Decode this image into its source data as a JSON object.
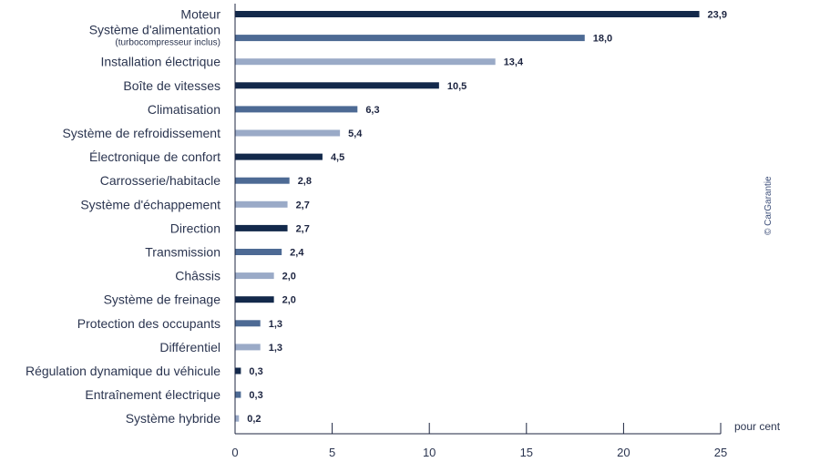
{
  "chart_data": {
    "type": "bar",
    "orientation": "horizontal",
    "categories": [
      "Moteur",
      "Système d'alimentation",
      "Installation électrique",
      "Boîte de vitesses",
      "Climatisation",
      "Système de refroidissement",
      "Électronique de confort",
      "Carrosserie/habitacle",
      "Système d'échappement",
      "Direction",
      "Transmission",
      "Châssis",
      "Système de freinage",
      "Protection des occupants",
      "Différentiel",
      "Régulation dynamique du véhicule",
      "Entraînement électrique",
      "Système hybride"
    ],
    "category_notes": [
      "",
      "(turbocompresseur inclus)",
      "",
      "",
      "",
      "",
      "",
      "",
      "",
      "",
      "",
      "",
      "",
      "",
      "",
      "",
      "",
      ""
    ],
    "values": [
      23.9,
      18.0,
      13.4,
      10.5,
      6.3,
      5.4,
      4.5,
      2.8,
      2.7,
      2.7,
      2.4,
      2.0,
      2.0,
      1.3,
      1.3,
      0.3,
      0.3,
      0.2
    ],
    "value_labels": [
      "23,9",
      "18,0",
      "13,4",
      "10,5",
      "6,3",
      "5,4",
      "4,5",
      "2,8",
      "2,7",
      "2,7",
      "2,4",
      "2,0",
      "2,0",
      "1,3",
      "1,3",
      "0,3",
      "0,3",
      "0,2"
    ],
    "bar_colors": [
      "#13294b",
      "#4d6a94",
      "#9aaac7"
    ],
    "xlim": [
      0,
      25
    ],
    "xticks": [
      0,
      5,
      10,
      15,
      20,
      25
    ],
    "xtick_labels": [
      "0",
      "5",
      "10",
      "15",
      "20",
      "25"
    ],
    "xlabel": "pour cent",
    "credit": "© CarGarantie",
    "grid": false,
    "title": "",
    "ylabel": ""
  }
}
